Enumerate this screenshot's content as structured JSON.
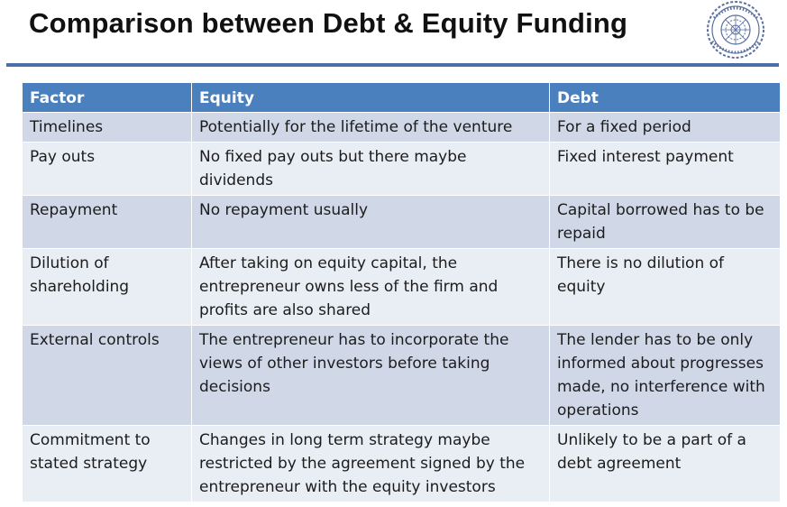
{
  "slide": {
    "title": "Comparison between Debt & Equity Funding"
  },
  "table": {
    "headers": [
      "Factor",
      "Equity",
      "Debt"
    ],
    "rows": [
      [
        "Timelines",
        "Potentially for the lifetime of the venture",
        "For a fixed period"
      ],
      [
        "Pay outs",
        "No fixed pay outs but there maybe dividends",
        "Fixed interest payment"
      ],
      [
        "Repayment",
        "No repayment usually",
        "Capital borrowed has to be repaid"
      ],
      [
        "Dilution of shareholding",
        "After taking on equity capital, the entrepreneur owns less of the firm and profits are also shared",
        "There is no dilution of equity"
      ],
      [
        "External controls",
        "The entrepreneur has to incorporate the views of other investors before taking decisions",
        "The lender has to be only informed about progresses made, no interference with operations"
      ],
      [
        "Commitment to stated strategy",
        "Changes in long term strategy maybe restricted by the agreement signed by the entrepreneur with the equity investors",
        "Unlikely to be a part of a debt agreement"
      ]
    ]
  },
  "colors": {
    "header_bg": "#4a80bd",
    "row_dark": "#d0d8e8",
    "row_light": "#e9edf4",
    "rule": "#4a6fa5",
    "logo": "#5a6fa0"
  },
  "icons": {
    "logo": "institute-seal-icon"
  }
}
